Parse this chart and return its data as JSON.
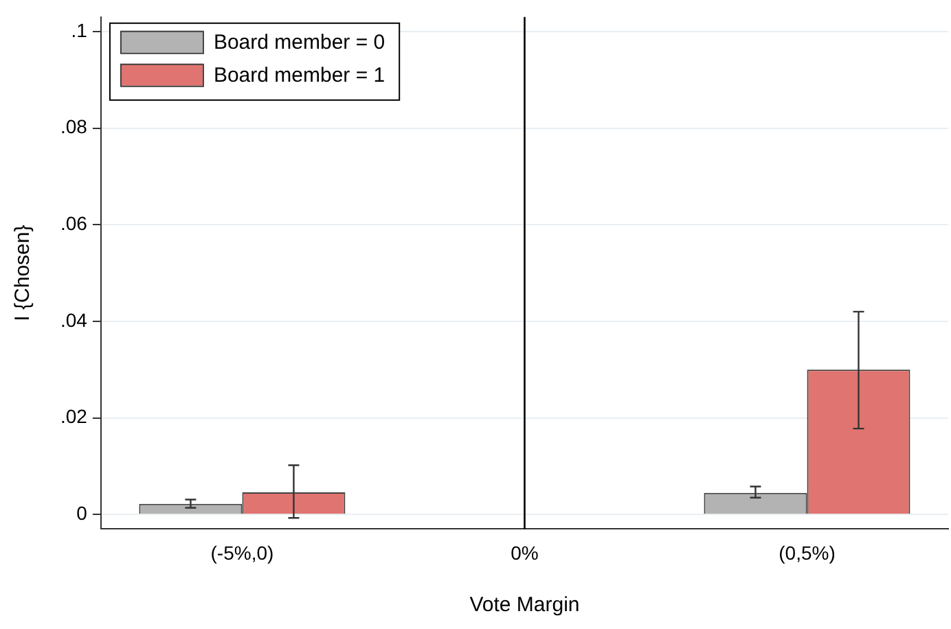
{
  "chart_data": {
    "type": "bar",
    "xlabel": "Vote Margin",
    "ylabel": "I {Chosen}",
    "categories": [
      "(-5%,0)",
      "0%",
      "(0,5%)"
    ],
    "series": [
      {
        "name": "Board member = 0",
        "color": "#b3b3b3",
        "values": [
          0.0022,
          null,
          0.0045
        ],
        "errors": [
          [
            0.0014,
            0.0031
          ],
          null,
          [
            0.0035,
            0.0058
          ]
        ]
      },
      {
        "name": "Board member = 1",
        "color": "#e07470",
        "values": [
          0.0046,
          null,
          0.03
        ],
        "errors": [
          [
            -0.0007,
            0.0102
          ],
          null,
          [
            0.0178,
            0.042
          ]
        ]
      }
    ],
    "ylim": [
      -0.003,
      0.103
    ],
    "yticks": [
      {
        "value": 0,
        "label": "0"
      },
      {
        "value": 0.02,
        "label": ".02"
      },
      {
        "value": 0.04,
        "label": ".04"
      },
      {
        "value": 0.06,
        "label": ".06"
      },
      {
        "value": 0.08,
        "label": ".08"
      },
      {
        "value": 0.1,
        "label": ".1"
      }
    ],
    "ref_lines": [
      {
        "axis": "x",
        "value": "0%",
        "color": "#000000"
      }
    ],
    "grid": "y",
    "legend": "top left"
  }
}
